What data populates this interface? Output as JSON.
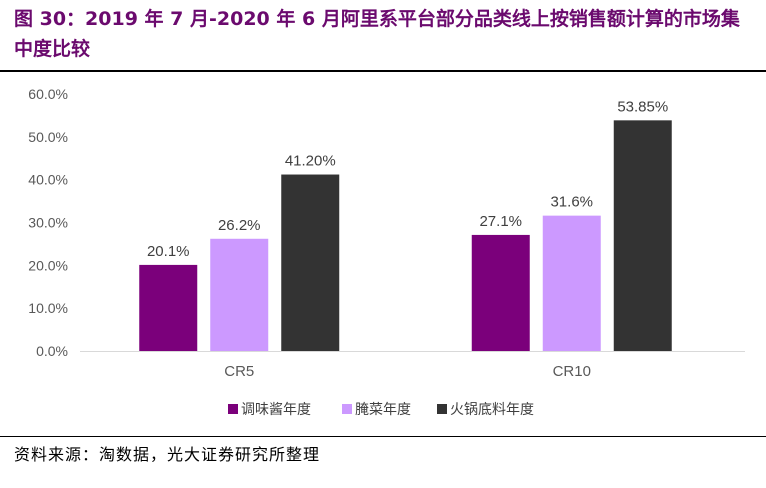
{
  "title": "图 30：2019 年 7 月-2020 年 6 月阿里系平台部分品类线上按销售额计算的市场集中度比较",
  "source": "资料来源：淘数据，光大证券研究所整理",
  "colors": {
    "title": "#6b0a6e",
    "s1": "#7b007b",
    "s2": "#cc99ff",
    "s3": "#333333"
  },
  "chart_data": {
    "type": "bar",
    "categories": [
      "CR5",
      "CR10"
    ],
    "series": [
      {
        "name": "调味酱年度",
        "values": [
          20.1,
          27.1
        ],
        "labels": [
          "20.1%",
          "27.1%"
        ]
      },
      {
        "name": "腌菜年度",
        "values": [
          26.2,
          31.6
        ],
        "labels": [
          "26.2%",
          "31.6%"
        ]
      },
      {
        "name": "火锅底料年度",
        "values": [
          41.2,
          53.85
        ],
        "labels": [
          "41.20%",
          "53.85%"
        ]
      }
    ],
    "ylim": [
      0,
      60
    ],
    "yticks": [
      "0.0%",
      "10.0%",
      "20.0%",
      "30.0%",
      "40.0%",
      "50.0%",
      "60.0%"
    ],
    "legend_position": "bottom",
    "grid": false
  }
}
